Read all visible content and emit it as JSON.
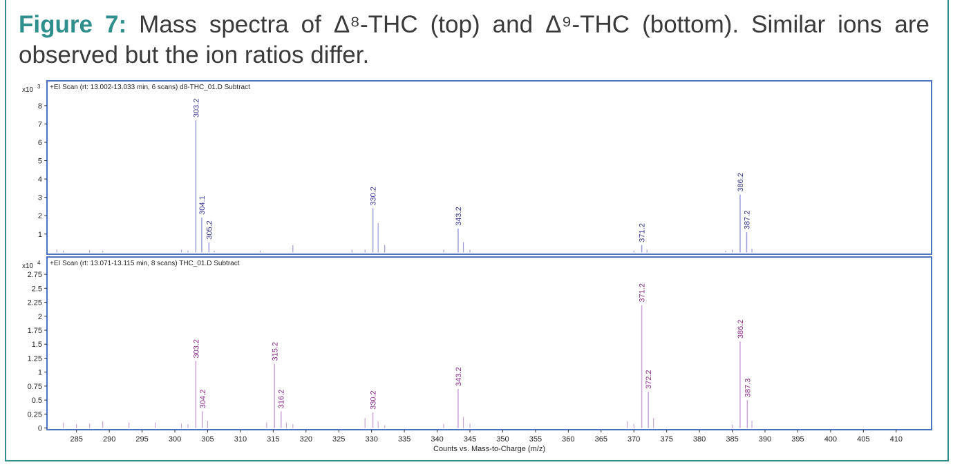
{
  "caption": {
    "label": "Figure 7:",
    "text": "Mass spectra of Δ⁸-THC (top) and Δ⁹-THC (bottom). Similar ions are observed but the ion ratios differ."
  },
  "chart_data": [
    {
      "type": "stem",
      "header": "+EI Scan (rt: 13.002-13.033 min, 6 scans) d8-THC_01.D  Subtract",
      "y_scale": "x10",
      "y_scale_exponent": "3",
      "color": "#9a9ad4",
      "label_color": "#34348a",
      "x": [
        303.2,
        304.1,
        305.2,
        330.2,
        343.2,
        371.2,
        386.2,
        387.2
      ],
      "values": [
        7.2,
        1.9,
        0.55,
        2.4,
        1.3,
        0.4,
        3.15,
        1.1
      ],
      "minor_x": [
        282,
        283,
        287,
        289,
        301,
        302,
        306,
        313,
        318,
        327,
        329,
        331,
        332,
        341,
        344,
        345,
        370,
        372,
        384,
        385,
        388
      ],
      "minor_values": [
        0.15,
        0.1,
        0.12,
        0.08,
        0.15,
        0.1,
        0.1,
        0.1,
        0.4,
        0.15,
        0.15,
        1.6,
        0.4,
        0.15,
        0.55,
        0.15,
        0.1,
        0.15,
        0.1,
        0.15,
        0.2
      ],
      "xlim": [
        280.5,
        415.4
      ],
      "ylim": [
        -0.1,
        9.35
      ],
      "yticks": [
        1,
        2,
        3,
        4,
        5,
        6,
        7,
        8
      ]
    },
    {
      "type": "stem",
      "header": "+EI Scan (rt: 13.071-13.115 min, 8 scans) THC_01.D  Subtract",
      "y_scale": "x10",
      "y_scale_exponent": "4",
      "color": "#c9a4d6",
      "label_color": "#8a2a8a",
      "x": [
        303.2,
        304.2,
        315.2,
        316.2,
        330.2,
        343.2,
        371.2,
        372.2,
        386.2,
        387.3
      ],
      "values": [
        1.2,
        0.3,
        1.15,
        0.3,
        0.28,
        0.7,
        2.2,
        0.65,
        1.55,
        0.5
      ],
      "minor_x": [
        283,
        285,
        287,
        289,
        293,
        297,
        301,
        302,
        305,
        314,
        317,
        318,
        329,
        331,
        332,
        341,
        344,
        345,
        369,
        370,
        373,
        385,
        388
      ],
      "minor_values": [
        0.1,
        0.07,
        0.08,
        0.12,
        0.1,
        0.1,
        0.08,
        0.07,
        0.13,
        0.1,
        0.1,
        0.07,
        0.18,
        0.12,
        0.05,
        0.07,
        0.2,
        0.08,
        0.12,
        0.07,
        0.18,
        0.06,
        0.13
      ],
      "xlim": [
        280.5,
        415.4
      ],
      "ylim": [
        -0.03,
        3.06
      ],
      "yticks": [
        0,
        0.25,
        0.5,
        0.75,
        1,
        1.25,
        1.5,
        1.75,
        2,
        2.25,
        2.5,
        2.75
      ],
      "xticks": [
        285,
        290,
        295,
        300,
        305,
        310,
        315,
        320,
        325,
        330,
        335,
        340,
        345,
        350,
        355,
        360,
        365,
        370,
        375,
        380,
        385,
        390,
        395,
        400,
        405,
        410
      ],
      "xlabel": "Counts vs. Mass-to-Charge (m/z)"
    }
  ]
}
